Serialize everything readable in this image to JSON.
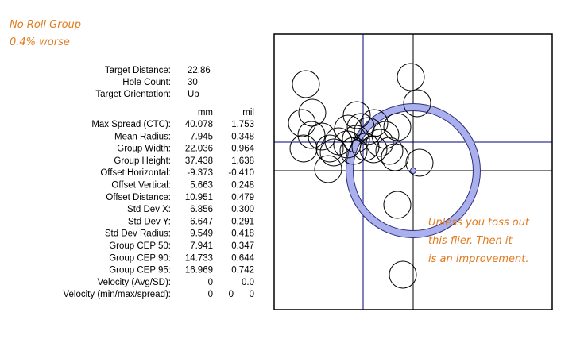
{
  "header": {
    "title": "No Roll Group",
    "subtitle": "0.4% worse"
  },
  "info": [
    {
      "label": "Target Distance:",
      "value": "22.86"
    },
    {
      "label": "Hole Count:",
      "value": "30"
    },
    {
      "label": "Target Orientation:",
      "value": "Up"
    }
  ],
  "stats": {
    "columns": [
      "mm",
      "mil"
    ],
    "rows": [
      [
        "Max Spread (CTC):",
        "40.078",
        "1.753"
      ],
      [
        "Mean Radius:",
        "7.945",
        "0.348"
      ],
      [
        "Group Width:",
        "22.036",
        "0.964"
      ],
      [
        "Group Height:",
        "37.438",
        "1.638"
      ],
      [
        "Offset Horizontal:",
        "-9.373",
        "-0.410"
      ],
      [
        "Offset Vertical:",
        "5.663",
        "0.248"
      ],
      [
        "Offset Distance:",
        "10.951",
        "0.479"
      ],
      [
        "Std Dev X:",
        "6.856",
        "0.300"
      ],
      [
        "Std Dev Y:",
        "6.647",
        "0.291"
      ],
      [
        "Std Dev Radius:",
        "9.549",
        "0.418"
      ],
      [
        "Group CEP 50:",
        "7.941",
        "0.347"
      ],
      [
        "Group CEP 90:",
        "14.733",
        "0.644"
      ],
      [
        "Group CEP 95:",
        "16.969",
        "0.742"
      ],
      [
        "Velocity (Avg/SD):",
        "0",
        "0.0"
      ],
      [
        "Velocity (min/max/spread):",
        "0",
        "0",
        "0"
      ]
    ]
  },
  "annotation": [
    "Unless you toss out",
    "this flier.  Then it",
    "is an improvement."
  ]
}
